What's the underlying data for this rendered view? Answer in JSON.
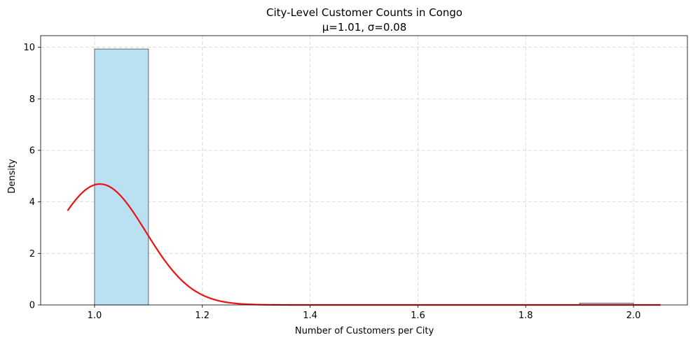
{
  "chart_data": {
    "type": "histogram",
    "title": "City-Level Customer Counts in Congo",
    "subtitle": "μ=1.01, σ=0.08",
    "xlabel": "Number of Customers per City",
    "ylabel": "Density",
    "xlim": [
      0.9,
      2.1
    ],
    "ylim": [
      0,
      10.45
    ],
    "xticks": [
      1.0,
      1.2,
      1.4,
      1.6,
      1.8,
      2.0
    ],
    "xtick_labels": [
      "1.0",
      "1.2",
      "1.4",
      "1.6",
      "1.8",
      "2.0"
    ],
    "yticks": [
      0,
      2,
      4,
      6,
      8,
      10
    ],
    "ytick_labels": [
      "0",
      "2",
      "4",
      "6",
      "8",
      "10"
    ],
    "grid": true,
    "bars": [
      {
        "x0": 1.0,
        "x1": 1.1,
        "value": 9.93
      },
      {
        "x0": 1.9,
        "x1": 2.0,
        "value": 0.07
      }
    ],
    "curve": {
      "mu": 1.01,
      "sigma": 0.085,
      "x_range": [
        0.95,
        2.05
      ]
    },
    "colors": {
      "bar_fill": "#b9e1f2",
      "bar_edge": "#666666",
      "curve": "#ee1111",
      "grid": "#d3d3d3"
    }
  }
}
